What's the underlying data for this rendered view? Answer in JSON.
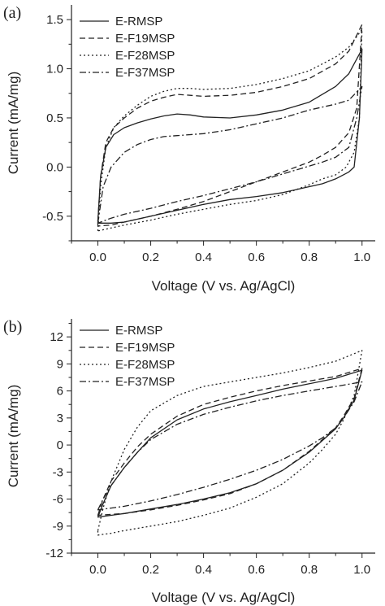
{
  "chart_data": [
    {
      "type": "line",
      "panel_label": "(a)",
      "xlabel": "Voltage (V vs. Ag/AgCl)",
      "ylabel": "Current (mA/mg)",
      "xlim": [
        -0.1,
        1.05
      ],
      "ylim": [
        -0.75,
        1.65
      ],
      "xticks": [
        "0.0",
        "0.2",
        "0.4",
        "0.6",
        "0.8",
        "1.0"
      ],
      "yticks": [
        "-0.5",
        "0.0",
        "0.5",
        "1.0",
        "1.5"
      ],
      "grid": false,
      "legend_position": "top-left",
      "series": [
        {
          "name": "E-RMSP",
          "dash": "solid",
          "upper": {
            "x": [
              0,
              0.01,
              0.03,
              0.06,
              0.1,
              0.15,
              0.2,
              0.25,
              0.3,
              0.35,
              0.4,
              0.5,
              0.6,
              0.7,
              0.8,
              0.9,
              0.95,
              1.0
            ],
            "y": [
              -0.55,
              -0.1,
              0.2,
              0.33,
              0.4,
              0.45,
              0.49,
              0.52,
              0.54,
              0.53,
              0.51,
              0.5,
              0.53,
              0.58,
              0.66,
              0.82,
              0.95,
              1.2
            ]
          },
          "lower": {
            "x": [
              1.0,
              0.99,
              0.97,
              0.95,
              0.9,
              0.85,
              0.8,
              0.7,
              0.6,
              0.5,
              0.4,
              0.3,
              0.2,
              0.1,
              0.05,
              0.0
            ],
            "y": [
              1.2,
              0.5,
              0.0,
              -0.05,
              -0.12,
              -0.17,
              -0.2,
              -0.26,
              -0.3,
              -0.33,
              -0.38,
              -0.44,
              -0.5,
              -0.56,
              -0.57,
              -0.57
            ]
          }
        },
        {
          "name": "E-F19MSP",
          "dash": "dashed",
          "upper": {
            "x": [
              0,
              0.01,
              0.03,
              0.06,
              0.1,
              0.15,
              0.2,
              0.25,
              0.3,
              0.35,
              0.4,
              0.5,
              0.6,
              0.7,
              0.8,
              0.9,
              0.95,
              1.0
            ],
            "y": [
              -0.55,
              -0.1,
              0.25,
              0.4,
              0.5,
              0.6,
              0.67,
              0.71,
              0.74,
              0.73,
              0.72,
              0.73,
              0.76,
              0.82,
              0.9,
              1.05,
              1.18,
              1.45
            ]
          },
          "lower": {
            "x": [
              1.0,
              0.98,
              0.95,
              0.9,
              0.85,
              0.8,
              0.7,
              0.6,
              0.5,
              0.4,
              0.3,
              0.2,
              0.1,
              0.05,
              0.0
            ],
            "y": [
              1.45,
              0.6,
              0.35,
              0.2,
              0.12,
              0.05,
              -0.05,
              -0.15,
              -0.25,
              -0.35,
              -0.43,
              -0.5,
              -0.56,
              -0.59,
              -0.6
            ]
          }
        },
        {
          "name": "E-F28MSP",
          "dash": "dotted",
          "upper": {
            "x": [
              0,
              0.01,
              0.03,
              0.06,
              0.1,
              0.15,
              0.2,
              0.25,
              0.3,
              0.35,
              0.4,
              0.5,
              0.6,
              0.7,
              0.8,
              0.9,
              0.95,
              1.0
            ],
            "y": [
              -0.65,
              -0.2,
              0.2,
              0.4,
              0.52,
              0.63,
              0.72,
              0.77,
              0.8,
              0.8,
              0.79,
              0.8,
              0.84,
              0.9,
              0.98,
              1.12,
              1.22,
              1.4
            ]
          },
          "lower": {
            "x": [
              1.0,
              0.99,
              0.97,
              0.94,
              0.9,
              0.85,
              0.8,
              0.7,
              0.6,
              0.5,
              0.4,
              0.3,
              0.2,
              0.1,
              0.05,
              0.0
            ],
            "y": [
              1.4,
              0.5,
              0.15,
              0.0,
              -0.08,
              -0.12,
              -0.18,
              -0.28,
              -0.34,
              -0.38,
              -0.43,
              -0.48,
              -0.54,
              -0.59,
              -0.62,
              -0.65
            ]
          }
        },
        {
          "name": "E-F37MSP",
          "dash": "dashdot",
          "upper": {
            "x": [
              0,
              0.02,
              0.05,
              0.1,
              0.15,
              0.2,
              0.25,
              0.3,
              0.4,
              0.5,
              0.6,
              0.7,
              0.8,
              0.9,
              0.95,
              1.0
            ],
            "y": [
              -0.57,
              -0.2,
              0.0,
              0.15,
              0.23,
              0.28,
              0.31,
              0.32,
              0.34,
              0.38,
              0.44,
              0.5,
              0.58,
              0.64,
              0.68,
              0.82
            ]
          },
          "lower": {
            "x": [
              1.0,
              0.98,
              0.95,
              0.9,
              0.85,
              0.8,
              0.7,
              0.6,
              0.5,
              0.4,
              0.3,
              0.2,
              0.1,
              0.05,
              0.0
            ],
            "y": [
              0.82,
              0.5,
              0.2,
              0.1,
              0.05,
              0.01,
              -0.07,
              -0.15,
              -0.22,
              -0.29,
              -0.35,
              -0.42,
              -0.48,
              -0.52,
              -0.57
            ]
          }
        }
      ]
    },
    {
      "type": "line",
      "panel_label": "(b)",
      "xlabel": "Voltage (V vs. Ag/AgCl)",
      "ylabel": "Current (mA/mg)",
      "xlim": [
        -0.1,
        1.05
      ],
      "ylim": [
        -12,
        14
      ],
      "xticks": [
        "0.0",
        "0.2",
        "0.4",
        "0.6",
        "0.8",
        "1.0"
      ],
      "yticks": [
        "-12",
        "-9",
        "-6",
        "-3",
        "0",
        "3",
        "6",
        "9",
        "12"
      ],
      "grid": false,
      "legend_position": "top-left",
      "series": [
        {
          "name": "E-RMSP",
          "dash": "solid",
          "upper": {
            "x": [
              0,
              0.02,
              0.05,
              0.1,
              0.15,
              0.2,
              0.3,
              0.4,
              0.5,
              0.6,
              0.7,
              0.8,
              0.9,
              1.0
            ],
            "y": [
              -8,
              -6.5,
              -4.5,
              -2.5,
              -0.8,
              0.8,
              2.8,
              4.0,
              4.8,
              5.5,
              6.2,
              6.8,
              7.4,
              8.3
            ]
          },
          "lower": {
            "x": [
              1.0,
              0.97,
              0.93,
              0.9,
              0.85,
              0.8,
              0.7,
              0.6,
              0.5,
              0.4,
              0.3,
              0.2,
              0.1,
              0.05,
              0.0
            ],
            "y": [
              8.3,
              5.0,
              3.0,
              1.8,
              0.5,
              -0.8,
              -2.8,
              -4.3,
              -5.3,
              -6.0,
              -6.6,
              -7.1,
              -7.6,
              -7.8,
              -8.0
            ]
          }
        },
        {
          "name": "E-F19MSP",
          "dash": "dashed",
          "upper": {
            "x": [
              0,
              0.02,
              0.05,
              0.1,
              0.15,
              0.2,
              0.3,
              0.4,
              0.5,
              0.6,
              0.7,
              0.8,
              0.9,
              1.0
            ],
            "y": [
              -7.8,
              -6.0,
              -4.0,
              -2.0,
              -0.2,
              1.2,
              3.2,
              4.5,
              5.3,
              6.0,
              6.6,
              7.1,
              7.6,
              8.5
            ]
          },
          "lower": {
            "x": [
              1.0,
              0.97,
              0.93,
              0.9,
              0.85,
              0.8,
              0.7,
              0.6,
              0.5,
              0.4,
              0.3,
              0.2,
              0.1,
              0.05,
              0.0
            ],
            "y": [
              8.5,
              5.2,
              3.2,
              1.9,
              0.6,
              -0.7,
              -2.8,
              -4.3,
              -5.4,
              -6.1,
              -6.7,
              -7.2,
              -7.6,
              -7.7,
              -7.8
            ]
          }
        },
        {
          "name": "E-F28MSP",
          "dash": "dotted",
          "upper": {
            "x": [
              0,
              0.02,
              0.05,
              0.1,
              0.15,
              0.2,
              0.3,
              0.4,
              0.5,
              0.6,
              0.7,
              0.8,
              0.9,
              1.0
            ],
            "y": [
              -9.5,
              -7.0,
              -4.0,
              -0.5,
              2.0,
              3.8,
              5.5,
              6.5,
              7.0,
              7.5,
              8.0,
              8.6,
              9.3,
              10.5
            ]
          },
          "lower": {
            "x": [
              1.0,
              0.97,
              0.93,
              0.9,
              0.85,
              0.8,
              0.7,
              0.6,
              0.5,
              0.4,
              0.3,
              0.2,
              0.1,
              0.05,
              0.0
            ],
            "y": [
              10.5,
              5.5,
              2.8,
              1.2,
              -0.5,
              -2.0,
              -4.3,
              -5.8,
              -7.0,
              -7.8,
              -8.5,
              -9.0,
              -9.5,
              -9.8,
              -10.0
            ]
          }
        },
        {
          "name": "E-F37MSP",
          "dash": "dashdot",
          "upper": {
            "x": [
              0,
              0.02,
              0.05,
              0.1,
              0.15,
              0.2,
              0.3,
              0.4,
              0.5,
              0.6,
              0.7,
              0.8,
              0.9,
              1.0
            ],
            "y": [
              -7.2,
              -6.0,
              -4.5,
              -2.5,
              -0.8,
              0.6,
              2.3,
              3.4,
              4.2,
              4.9,
              5.5,
              6.0,
              6.5,
              7.0
            ]
          },
          "lower": {
            "x": [
              1.0,
              0.97,
              0.93,
              0.9,
              0.85,
              0.8,
              0.7,
              0.6,
              0.5,
              0.4,
              0.3,
              0.2,
              0.1,
              0.05,
              0.0
            ],
            "y": [
              7.0,
              4.8,
              3.0,
              1.9,
              0.8,
              -0.1,
              -1.6,
              -2.8,
              -3.8,
              -4.7,
              -5.5,
              -6.2,
              -6.8,
              -7.0,
              -7.2
            ]
          }
        }
      ]
    }
  ]
}
